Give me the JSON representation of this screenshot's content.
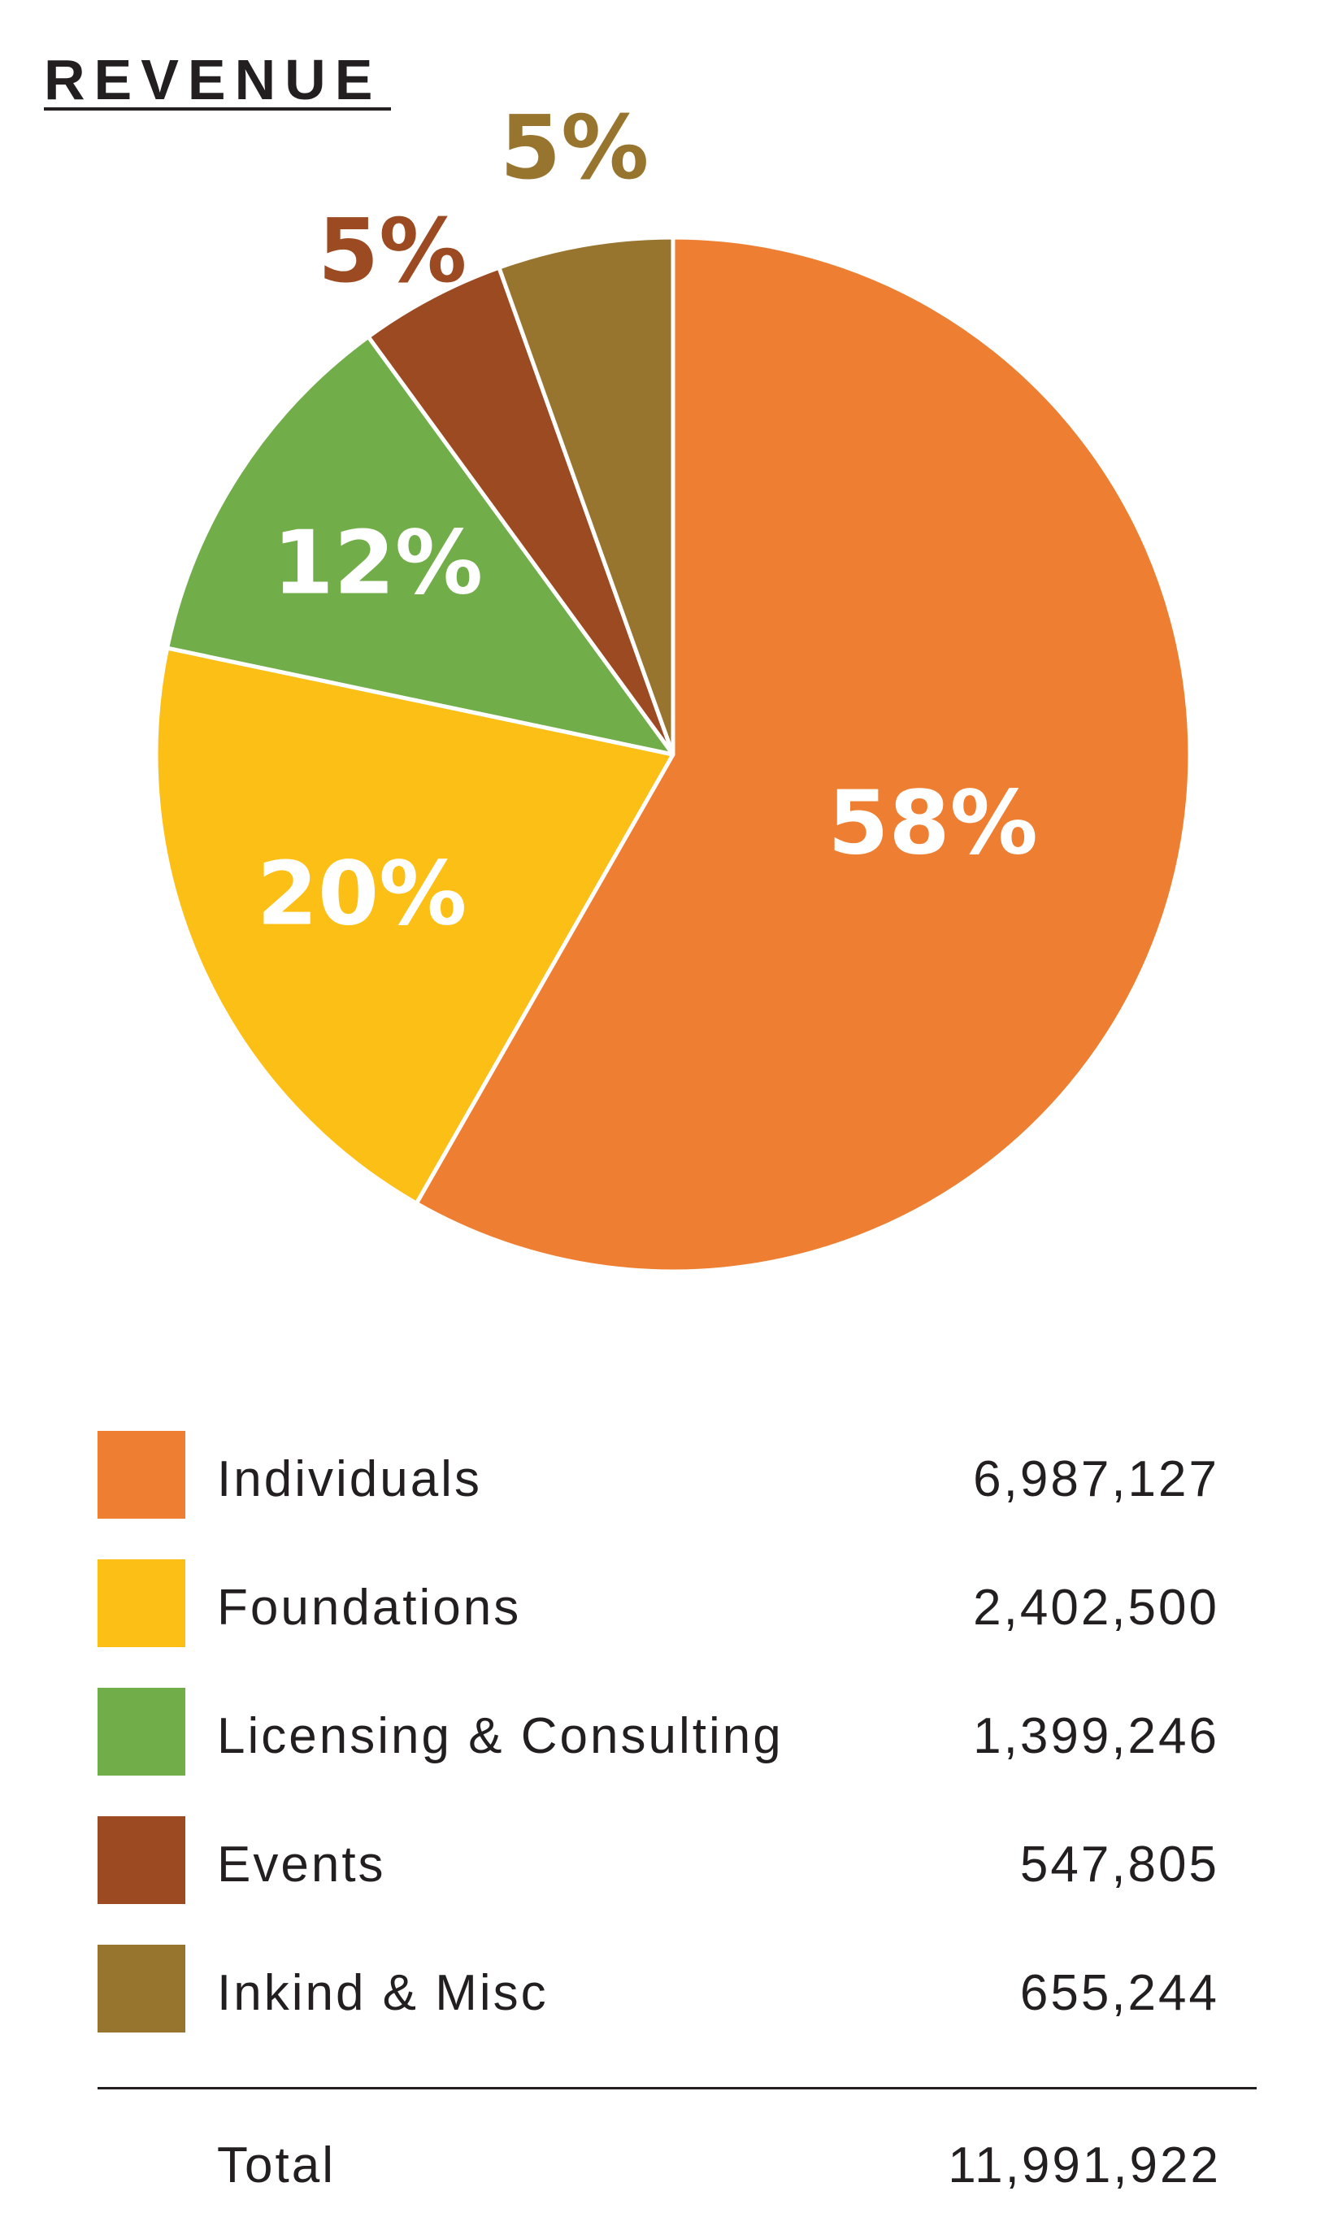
{
  "chart_data": {
    "type": "pie",
    "title": "REVENUE",
    "slices": [
      {
        "label": "Individuals",
        "value": 6987127,
        "display_value": "6,987,127",
        "percent_label": "58%",
        "color": "#ee7f32",
        "label_color": "#ffffff"
      },
      {
        "label": "Foundations",
        "value": 2402500,
        "display_value": "2,402,500",
        "percent_label": "20%",
        "color": "#fcbf15",
        "label_color": "#ffffff"
      },
      {
        "label": "Licensing & Consulting",
        "value": 1399246,
        "display_value": "1,399,246",
        "percent_label": "12%",
        "color": "#71ad48",
        "label_color": "#ffffff"
      },
      {
        "label": "Events",
        "value": 547805,
        "display_value": "547,805",
        "percent_label": "5%",
        "color": "#9c4a22",
        "label_color": "#9c4a22"
      },
      {
        "label": "Inkind & Misc",
        "value": 655244,
        "display_value": "655,244",
        "percent_label": "5%",
        "color": "#98752f",
        "label_color": "#98752f"
      }
    ],
    "total": {
      "label": "Total",
      "display_value": "11,991,922"
    }
  }
}
